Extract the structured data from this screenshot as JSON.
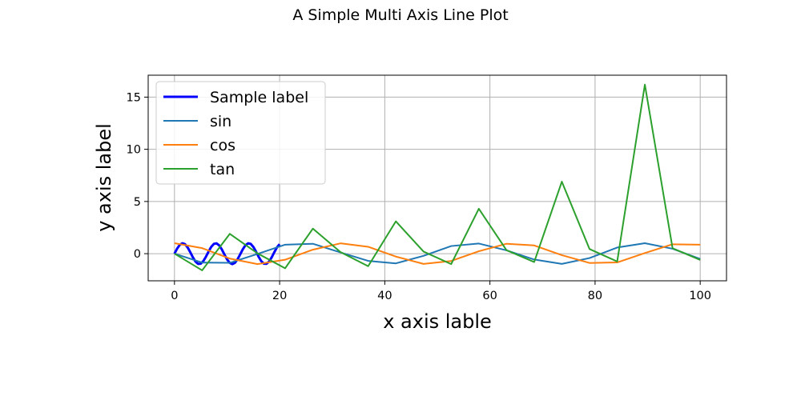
{
  "chart_data": {
    "type": "line",
    "title": "A Simple Multi Axis Line Plot",
    "xlabel": "x axis lable",
    "ylabel": "y axis label",
    "xlim": [
      -5,
      105
    ],
    "ylim": [
      -2.6,
      17.1
    ],
    "xticks": [
      0,
      20,
      40,
      60,
      80,
      100
    ],
    "yticks": [
      0,
      5,
      10,
      15
    ],
    "grid": true,
    "legend_position": "top-left",
    "series": [
      {
        "name": "Sample label",
        "color": "#0000ff",
        "style": "thick",
        "x": [
          0,
          0.5,
          1,
          1.5,
          2,
          2.5,
          3,
          3.5,
          4,
          4.5,
          5,
          5.5,
          6,
          6.5,
          7,
          7.5,
          8,
          8.5,
          9,
          9.5,
          10,
          10.5,
          11,
          11.5,
          12,
          12.5,
          13,
          13.5,
          14,
          14.5,
          15,
          15.5,
          16,
          16.5,
          17,
          17.5,
          18,
          18.5,
          19,
          19.5,
          20
        ],
        "y": [
          0,
          0.479,
          0.841,
          0.997,
          0.909,
          0.598,
          0.141,
          -0.351,
          -0.757,
          -0.978,
          -0.959,
          -0.706,
          -0.279,
          0.215,
          0.657,
          0.938,
          0.989,
          0.798,
          0.412,
          -0.075,
          -0.544,
          -0.88,
          -1.0,
          -0.875,
          -0.537,
          -0.066,
          0.42,
          0.803,
          0.991,
          0.935,
          0.65,
          0.206,
          -0.288,
          -0.712,
          -0.961,
          -0.976,
          -0.751,
          -0.342,
          0.15,
          0.605,
          0.913
        ]
      },
      {
        "name": "sin",
        "color": "#1f77b4",
        "x": [
          0,
          5.26,
          10.53,
          15.79,
          21.05,
          26.32,
          31.58,
          36.84,
          42.11,
          47.37,
          52.63,
          57.89,
          63.16,
          68.42,
          73.68,
          78.95,
          84.21,
          89.47,
          94.74,
          100
        ],
        "y": [
          0,
          -0.85,
          -0.88,
          -0.03,
          0.86,
          0.95,
          0.12,
          -0.69,
          -0.93,
          -0.21,
          0.73,
          0.97,
          0.32,
          -0.56,
          -0.98,
          -0.42,
          0.59,
          1.0,
          0.47,
          -0.51
        ]
      },
      {
        "name": "cos",
        "color": "#ff7f0e",
        "x": [
          0,
          5.26,
          10.53,
          15.79,
          21.05,
          26.32,
          31.58,
          36.84,
          42.11,
          47.37,
          52.63,
          57.89,
          63.16,
          68.42,
          73.68,
          78.95,
          84.21,
          89.47,
          94.74,
          100
        ],
        "y": [
          1.0,
          0.53,
          -0.47,
          -1.0,
          -0.58,
          0.38,
          0.99,
          0.66,
          -0.28,
          -0.98,
          -0.7,
          0.23,
          0.95,
          0.79,
          -0.14,
          -0.89,
          -0.84,
          0.06,
          0.9,
          0.86
        ]
      },
      {
        "name": "tan",
        "color": "#2ca02c",
        "x": [
          0,
          5.26,
          10.53,
          15.79,
          21.05,
          26.32,
          31.58,
          36.84,
          42.11,
          47.37,
          52.63,
          57.89,
          63.16,
          68.42,
          73.68,
          78.95,
          84.21,
          89.47,
          94.74,
          100
        ],
        "y": [
          0,
          -1.6,
          1.9,
          0.03,
          -1.4,
          2.4,
          0.15,
          -1.2,
          3.1,
          0.2,
          -1.0,
          4.3,
          0.33,
          -0.8,
          6.9,
          0.44,
          -0.75,
          16.2,
          0.52,
          -0.6
        ]
      }
    ]
  }
}
